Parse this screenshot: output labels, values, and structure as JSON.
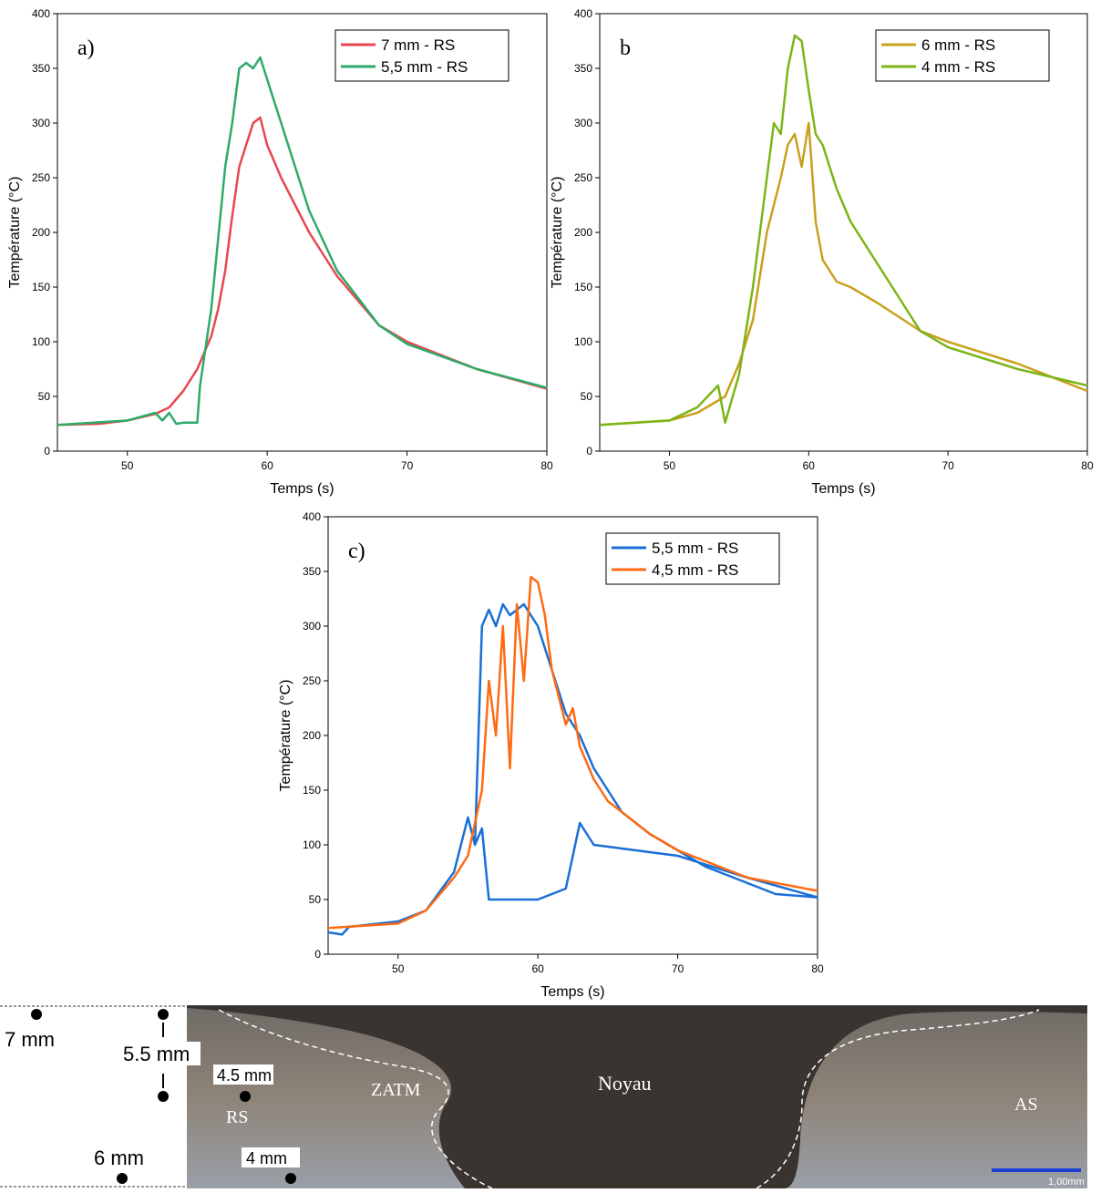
{
  "chart_data": [
    {
      "type": "line",
      "panel_label": "a)",
      "xlabel": "Temps (s)",
      "ylabel": "Température (°C)",
      "xlim": [
        45,
        80
      ],
      "xticks": [
        50,
        60,
        70,
        80
      ],
      "ylim": [
        0,
        400
      ],
      "yticks": [
        0,
        50,
        100,
        150,
        200,
        250,
        300,
        350,
        400
      ],
      "legend": "upper right",
      "series": [
        {
          "name": "7 mm - RS",
          "color": "#e8474f",
          "x": [
            45,
            48,
            50,
            52,
            53,
            54,
            55,
            56,
            56.5,
            57,
            57.5,
            58,
            58.5,
            59,
            59.5,
            60,
            61,
            62,
            63,
            65,
            68,
            70,
            75,
            80
          ],
          "values": [
            24,
            25,
            28,
            34,
            40,
            55,
            75,
            105,
            130,
            165,
            215,
            260,
            280,
            300,
            305,
            280,
            250,
            225,
            200,
            160,
            115,
            100,
            75,
            57
          ]
        },
        {
          "name": "5,5 mm - RS",
          "color": "#2eaa6a",
          "x": [
            45,
            50,
            52,
            52.5,
            53,
            53.5,
            54,
            55,
            55.2,
            56,
            57,
            57.5,
            58,
            58.5,
            59,
            59.5,
            60,
            60.5,
            61,
            62,
            63,
            65,
            68,
            70,
            75,
            80
          ],
          "values": [
            24,
            28,
            35,
            28,
            35,
            25,
            26,
            26,
            60,
            130,
            260,
            300,
            350,
            355,
            350,
            360,
            340,
            320,
            300,
            260,
            220,
            165,
            115,
            98,
            75,
            58
          ]
        }
      ]
    },
    {
      "type": "line",
      "panel_label": "b",
      "xlabel": "Temps (s)",
      "ylabel": "Température (°C)",
      "xlim": [
        45,
        80
      ],
      "xticks": [
        50,
        60,
        70,
        80
      ],
      "ylim": [
        0,
        400
      ],
      "yticks": [
        0,
        50,
        100,
        150,
        200,
        250,
        300,
        350,
        400
      ],
      "legend": "upper right",
      "series": [
        {
          "name": "6 mm - RS",
          "color": "#c9a01e",
          "x": [
            45,
            50,
            52,
            54,
            55,
            56,
            57,
            58,
            58.5,
            59,
            59.5,
            60,
            60.5,
            61,
            62,
            63,
            65,
            68,
            70,
            75,
            80
          ],
          "values": [
            24,
            28,
            35,
            50,
            80,
            120,
            200,
            250,
            280,
            290,
            260,
            300,
            210,
            175,
            155,
            150,
            135,
            110,
            100,
            80,
            55
          ]
        },
        {
          "name": "4 mm - RS",
          "color": "#7cb518",
          "x": [
            45,
            50,
            52,
            53.5,
            54,
            55,
            56,
            57,
            57.5,
            58,
            58.5,
            59,
            59.5,
            60,
            60.5,
            61,
            62,
            63,
            64,
            65,
            66,
            68,
            70,
            75,
            80
          ],
          "values": [
            24,
            28,
            40,
            60,
            26,
            70,
            150,
            250,
            300,
            290,
            350,
            380,
            375,
            330,
            290,
            280,
            240,
            210,
            190,
            170,
            150,
            110,
            95,
            75,
            60
          ]
        }
      ]
    },
    {
      "type": "line",
      "panel_label": "c)",
      "xlabel": "Temps (s)",
      "ylabel": "Température (°C)",
      "xlim": [
        45,
        80
      ],
      "xticks": [
        50,
        60,
        70,
        80
      ],
      "ylim": [
        0,
        400
      ],
      "yticks": [
        0,
        50,
        100,
        150,
        200,
        250,
        300,
        350,
        400
      ],
      "legend": "upper right",
      "series": [
        {
          "name": "5,5 mm - RS",
          "color": "#1a6fd6",
          "x": [
            45,
            46,
            46.5,
            50,
            52,
            54,
            55,
            55.5,
            56,
            56.5,
            57,
            57.5,
            58,
            59,
            60,
            61,
            62,
            63,
            64,
            65,
            66,
            68,
            70,
            72,
            75,
            77,
            80,
            null,
            55.5,
            56,
            56.5,
            58,
            60,
            62,
            63,
            64,
            70,
            75,
            80
          ],
          "values": [
            20,
            18,
            25,
            30,
            40,
            75,
            125,
            100,
            300,
            315,
            300,
            320,
            310,
            320,
            300,
            260,
            220,
            200,
            170,
            150,
            130,
            110,
            95,
            80,
            65,
            55,
            52,
            null,
            100,
            115,
            50,
            50,
            50,
            60,
            120,
            100,
            90,
            70,
            52
          ]
        },
        {
          "name": "4,5 mm - RS",
          "color": "#ff6a13",
          "x": [
            45,
            50,
            52,
            54,
            55,
            56,
            56.5,
            57,
            57.5,
            58,
            58.5,
            59,
            59.5,
            60,
            60.5,
            61,
            62,
            62.5,
            63,
            64,
            65,
            66,
            68,
            70,
            75,
            80
          ],
          "values": [
            24,
            28,
            40,
            70,
            90,
            150,
            250,
            200,
            300,
            170,
            320,
            250,
            345,
            340,
            310,
            260,
            210,
            225,
            190,
            160,
            140,
            130,
            110,
            95,
            70,
            58
          ]
        }
      ]
    }
  ],
  "micrograph": {
    "labels": [
      "7 mm",
      "5.5 mm",
      "4.5 mm",
      "RS",
      "ZATM",
      "Noyau",
      "AS",
      "6 mm",
      "4 mm",
      "1,00mm"
    ]
  }
}
